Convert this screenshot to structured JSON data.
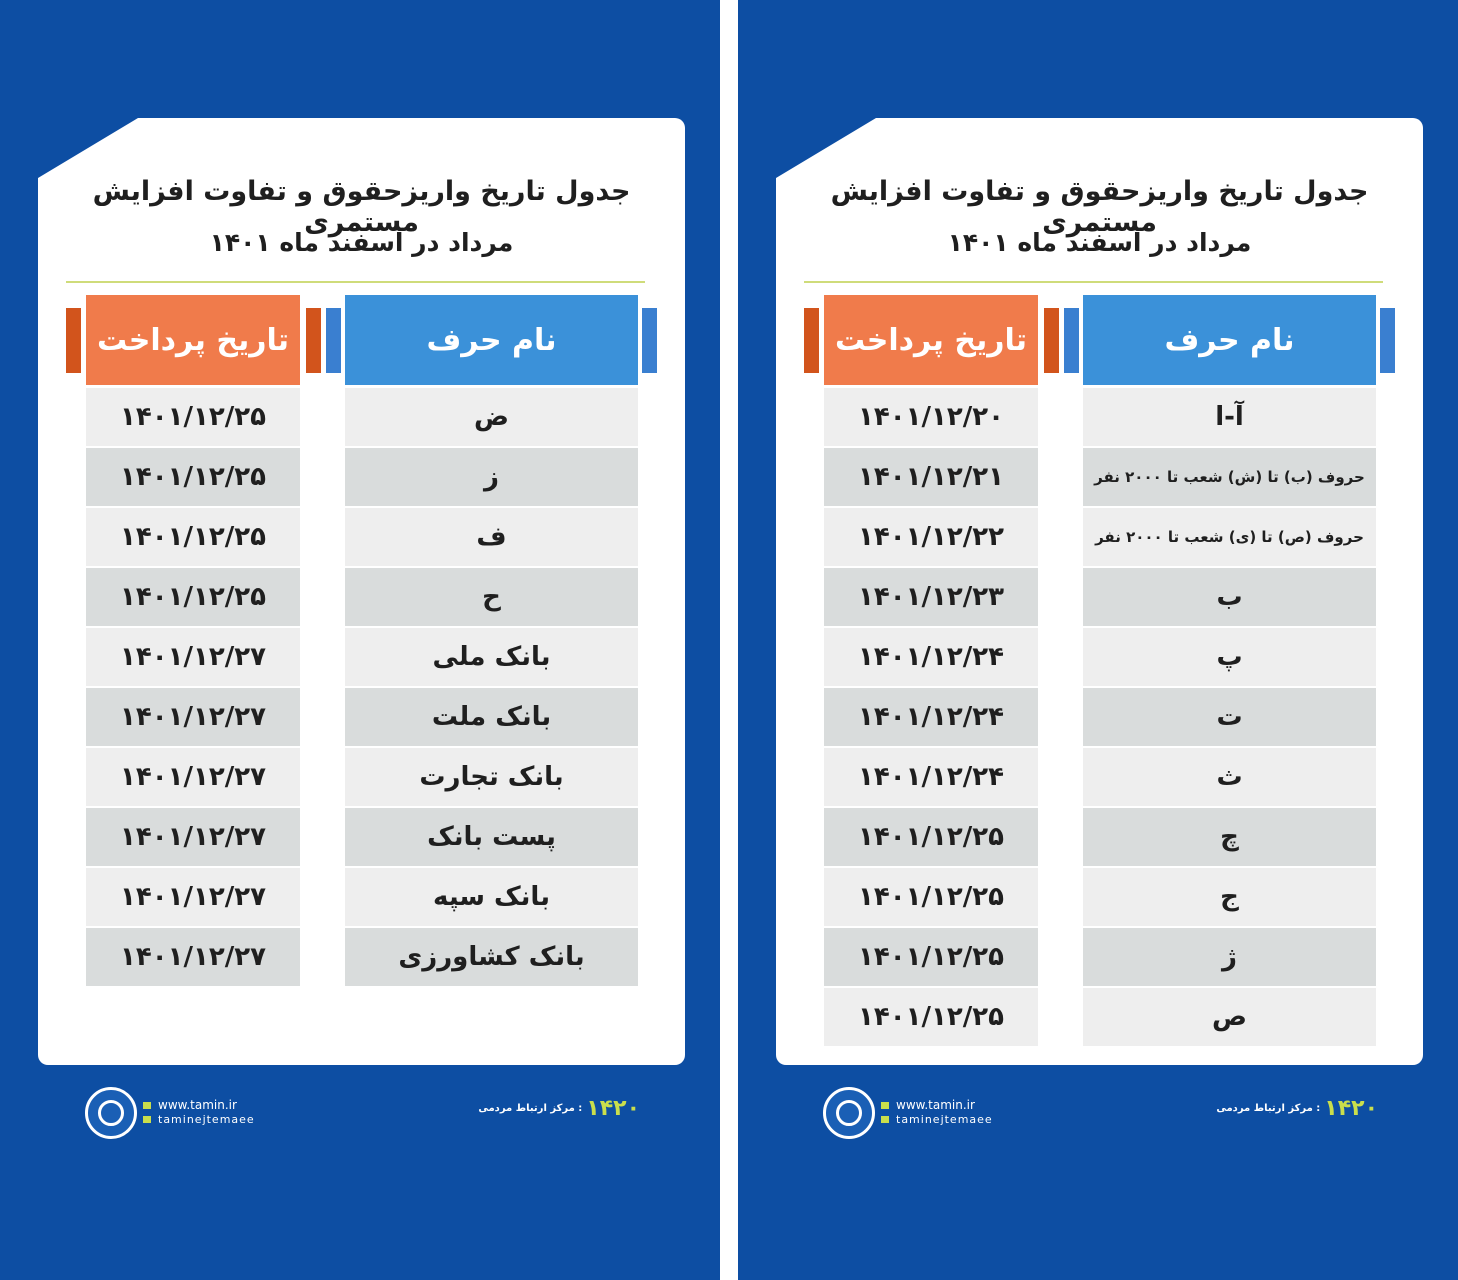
{
  "panels": [
    {
      "title": "جدول تاریخ واریزحقوق و تفاوت افزایش مستمری",
      "subtitle": "مرداد در اسفند ماه ۱۴۰۱",
      "headers": {
        "date": "تاریخ پرداخت",
        "name": "نام حرف"
      },
      "rows": [
        [
          "ض",
          "۱۴۰۱/۱۲/۲۵"
        ],
        [
          "ز",
          "۱۴۰۱/۱۲/۲۵"
        ],
        [
          "ف",
          "۱۴۰۱/۱۲/۲۵"
        ],
        [
          "ح",
          "۱۴۰۱/۱۲/۲۵"
        ],
        [
          "بانک ملی",
          "۱۴۰۱/۱۲/۲۷"
        ],
        [
          "بانک ملت",
          "۱۴۰۱/۱۲/۲۷"
        ],
        [
          "بانک تجارت",
          "۱۴۰۱/۱۲/۲۷"
        ],
        [
          "پست بانک",
          "۱۴۰۱/۱۲/۲۷"
        ],
        [
          "بانک سپه",
          "۱۴۰۱/۱۲/۲۷"
        ],
        [
          "بانک کشاورزی",
          "۱۴۰۱/۱۲/۲۷"
        ]
      ],
      "footer": {
        "website": "www.tamin.ir",
        "social": "taminejtemaee",
        "hotline": "۱۴۲۰",
        "hotline_label": ": مرکز ارتباط مردمی"
      }
    },
    {
      "title": "جدول تاریخ واریزحقوق و تفاوت افزایش مستمری",
      "subtitle": "مرداد در اسفند ماه ۱۴۰۱",
      "headers": {
        "date": "تاریخ پرداخت",
        "name": "نام حرف"
      },
      "rows": [
        [
          "آ-ا",
          "۱۴۰۱/۱۲/۲۰"
        ],
        [
          "حروف (ب) تا (ش) شعب تا ۲۰۰۰ نفر",
          "۱۴۰۱/۱۲/۲۱"
        ],
        [
          "حروف (ص) تا (ی) شعب تا ۲۰۰۰ نفر",
          "۱۴۰۱/۱۲/۲۲"
        ],
        [
          "ب",
          "۱۴۰۱/۱۲/۲۳"
        ],
        [
          "پ",
          "۱۴۰۱/۱۲/۲۴"
        ],
        [
          "ت",
          "۱۴۰۱/۱۲/۲۴"
        ],
        [
          "ث",
          "۱۴۰۱/۱۲/۲۴"
        ],
        [
          "چ",
          "۱۴۰۱/۱۲/۲۵"
        ],
        [
          "ج",
          "۱۴۰۱/۱۲/۲۵"
        ],
        [
          "ژ",
          "۱۴۰۱/۱۲/۲۵"
        ],
        [
          "ص",
          "۱۴۰۱/۱۲/۲۵"
        ]
      ],
      "footer": {
        "website": "www.tamin.ir",
        "social": "taminejtemaee",
        "hotline": "۱۴۲۰",
        "hotline_label": ": مرکز ارتباط مردمی"
      }
    }
  ]
}
